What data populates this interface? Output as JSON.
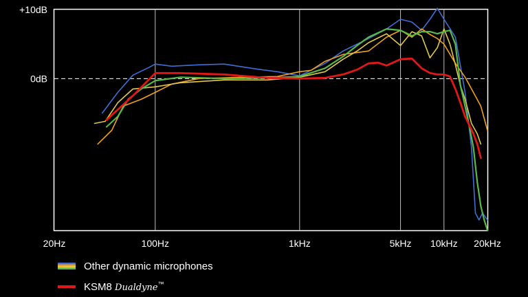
{
  "colors": {
    "background": "#000000",
    "frame": "#ffffff",
    "ksm8": "#e01818"
  },
  "chart_data": {
    "type": "line",
    "title": "",
    "xlabel": "",
    "ylabel": "",
    "x_scale": "log",
    "xlim": [
      20,
      20000
    ],
    "ylim": [
      -22,
      10
    ],
    "grid": {
      "vertical": true,
      "horizontal": false,
      "zero_line": "dashed"
    },
    "x_ticks": [
      {
        "value": 20,
        "label": "20Hz",
        "gridline": false
      },
      {
        "value": 100,
        "label": "100Hz",
        "gridline": true
      },
      {
        "value": 1000,
        "label": "1kHz",
        "gridline": true
      },
      {
        "value": 5000,
        "label": "5kHz",
        "gridline": true
      },
      {
        "value": 10000,
        "label": "10kHz",
        "gridline": true
      },
      {
        "value": 20000,
        "label": "20kHz",
        "gridline": false
      }
    ],
    "y_ticks": [
      {
        "value": 10,
        "label": "+10dB"
      },
      {
        "value": 0,
        "label": "0dB"
      }
    ],
    "series": [
      {
        "color": "#3f6fd6",
        "width": 1.6,
        "points": [
          [
            43,
            -5
          ],
          [
            55,
            -2
          ],
          [
            70,
            0.5
          ],
          [
            90,
            1.6
          ],
          [
            100,
            2.1
          ],
          [
            130,
            1.8
          ],
          [
            200,
            2.0
          ],
          [
            300,
            2.1
          ],
          [
            500,
            1.4
          ],
          [
            700,
            1.0
          ],
          [
            1000,
            0.4
          ],
          [
            1500,
            2.2
          ],
          [
            2000,
            4.0
          ],
          [
            3000,
            5.8
          ],
          [
            4000,
            7.2
          ],
          [
            5000,
            8.6
          ],
          [
            6000,
            8.2
          ],
          [
            7000,
            7.0
          ],
          [
            8000,
            8.6
          ],
          [
            9000,
            10.2
          ],
          [
            10000,
            8.6
          ],
          [
            12000,
            6.0
          ],
          [
            14000,
            -2.0
          ],
          [
            15500,
            -10.0
          ],
          [
            16500,
            -19.5
          ],
          [
            17500,
            -20.5
          ],
          [
            18500,
            -19.5
          ],
          [
            20000,
            -20.5
          ]
        ]
      },
      {
        "color": "#f0a020",
        "width": 1.6,
        "points": [
          [
            40,
            -9.5
          ],
          [
            50,
            -7.5
          ],
          [
            60,
            -4.0
          ],
          [
            80,
            -3.0
          ],
          [
            100,
            -2.0
          ],
          [
            130,
            -0.8
          ],
          [
            200,
            0.0
          ],
          [
            400,
            0.2
          ],
          [
            700,
            0.3
          ],
          [
            1000,
            1.0
          ],
          [
            1200,
            1.2
          ],
          [
            1500,
            2.5
          ],
          [
            2000,
            3.5
          ],
          [
            3000,
            4.0
          ],
          [
            4000,
            6.0
          ],
          [
            5000,
            7.0
          ],
          [
            6000,
            6.0
          ],
          [
            7000,
            7.2
          ],
          [
            8000,
            6.4
          ],
          [
            9000,
            5.8
          ],
          [
            10000,
            5.0
          ],
          [
            12000,
            2.2
          ],
          [
            14000,
            0.2
          ],
          [
            16000,
            -2.0
          ],
          [
            18000,
            -4.0
          ],
          [
            20000,
            -7.5
          ]
        ]
      },
      {
        "color": "#e2c84a",
        "width": 1.6,
        "points": [
          [
            38,
            -6.5
          ],
          [
            45,
            -6.2
          ],
          [
            55,
            -3.5
          ],
          [
            70,
            -1.5
          ],
          [
            100,
            -1.2
          ],
          [
            150,
            -0.6
          ],
          [
            300,
            -0.2
          ],
          [
            600,
            -0.2
          ],
          [
            1000,
            0.2
          ],
          [
            1500,
            1.0
          ],
          [
            2000,
            2.8
          ],
          [
            2500,
            4.0
          ],
          [
            3000,
            5.2
          ],
          [
            4000,
            6.5
          ],
          [
            5000,
            4.8
          ],
          [
            6000,
            6.8
          ],
          [
            7000,
            6.2
          ],
          [
            8000,
            3.0
          ],
          [
            9000,
            4.5
          ],
          [
            10000,
            7.2
          ],
          [
            11000,
            5.0
          ],
          [
            12000,
            2.0
          ],
          [
            13000,
            -1.0
          ],
          [
            14000,
            -3.0
          ],
          [
            15500,
            -6.5
          ],
          [
            17000,
            -8.0
          ],
          [
            18000,
            -9.5
          ]
        ]
      },
      {
        "color": "#58b94b",
        "width": 2.2,
        "points": [
          [
            46,
            -7.0
          ],
          [
            55,
            -5.5
          ],
          [
            65,
            -3.0
          ],
          [
            80,
            -1.5
          ],
          [
            100,
            -0.3
          ],
          [
            150,
            0.2
          ],
          [
            300,
            0.0
          ],
          [
            600,
            0.1
          ],
          [
            1000,
            0.3
          ],
          [
            1500,
            1.5
          ],
          [
            2000,
            3.2
          ],
          [
            2500,
            4.8
          ],
          [
            3000,
            6.0
          ],
          [
            4000,
            7.2
          ],
          [
            5000,
            7.0
          ],
          [
            6000,
            6.2
          ],
          [
            7000,
            6.8
          ],
          [
            8000,
            6.8
          ],
          [
            9000,
            6.5
          ],
          [
            10000,
            6.8
          ],
          [
            11000,
            7.0
          ],
          [
            12000,
            5.0
          ],
          [
            13000,
            -1.0
          ],
          [
            14000,
            -4.0
          ],
          [
            15000,
            -7.0
          ],
          [
            16000,
            -10.0
          ],
          [
            17000,
            -15.0
          ],
          [
            18000,
            -18.5
          ],
          [
            19000,
            -20.5
          ],
          [
            20000,
            -22.0
          ]
        ]
      },
      {
        "color": "#e01818",
        "width": 2.8,
        "points": [
          [
            46,
            -6.0
          ],
          [
            55,
            -4.5
          ],
          [
            70,
            -2.5
          ],
          [
            100,
            0.8
          ],
          [
            150,
            0.8
          ],
          [
            300,
            0.6
          ],
          [
            600,
            0.1
          ],
          [
            1000,
            0.0
          ],
          [
            1500,
            0.1
          ],
          [
            2000,
            0.6
          ],
          [
            2500,
            1.3
          ],
          [
            3000,
            2.2
          ],
          [
            3500,
            2.3
          ],
          [
            4000,
            1.9
          ],
          [
            5000,
            2.8
          ],
          [
            6000,
            2.9
          ],
          [
            7000,
            1.5
          ],
          [
            8000,
            0.8
          ],
          [
            9000,
            0.6
          ],
          [
            10000,
            0.6
          ],
          [
            11000,
            0.3
          ],
          [
            12000,
            -1.5
          ],
          [
            13000,
            -3.5
          ],
          [
            14000,
            -5.5
          ],
          [
            15000,
            -6.8
          ],
          [
            16000,
            -8.0
          ],
          [
            17000,
            -9.5
          ],
          [
            18000,
            -11.5
          ]
        ]
      }
    ]
  },
  "legend": {
    "other_label": "Other dynamic microphones",
    "ksm8_label": "KSM8",
    "ksm8_brand": "Dualdyne",
    "ksm8_tm": "™"
  }
}
